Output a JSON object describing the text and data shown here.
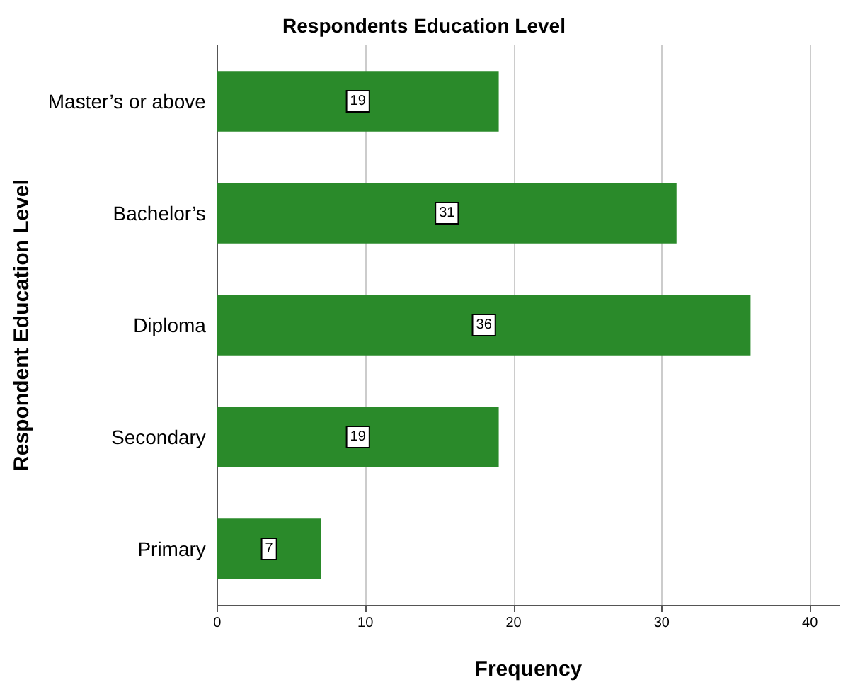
{
  "chart_data": {
    "type": "bar",
    "orientation": "horizontal",
    "title": "Respondents Education Level",
    "xlabel": "Frequency",
    "ylabel": "Respondent Education Level",
    "categories": [
      "Master’s or above",
      "Bachelor’s",
      "Diploma",
      "Secondary",
      "Primary"
    ],
    "values": [
      19,
      31,
      36,
      19,
      7
    ],
    "color": "#2a8a2a",
    "xlim": [
      0,
      42
    ],
    "xticks": [
      0,
      10,
      20,
      30,
      40
    ],
    "grid": "x",
    "data_labels": true
  }
}
